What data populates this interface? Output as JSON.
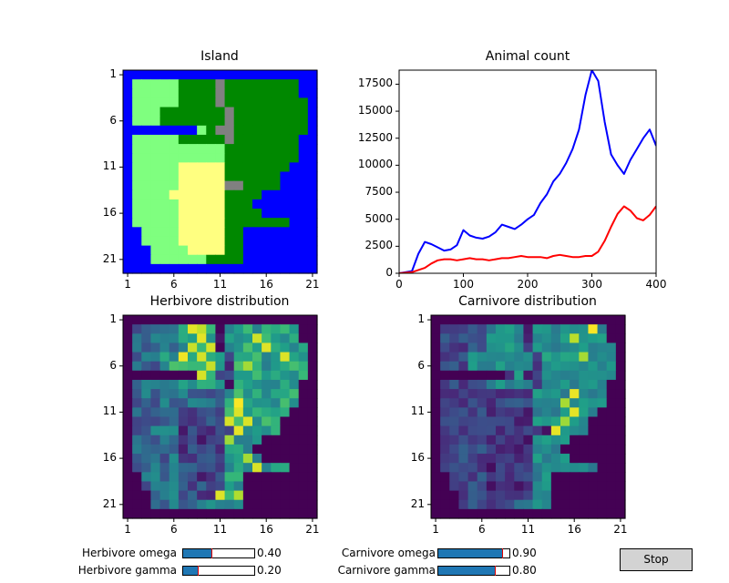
{
  "colors": {
    "axes_frame": "#000000",
    "herbivore_line": "#0000ff",
    "carnivore_line": "#ff0000",
    "slider_fill": "#1f77b4",
    "slider_marker": "#e00000",
    "button_bg": "#d3d3d3",
    "water": "#0000ff",
    "highland": "#008800",
    "lowland": "#7fff7f",
    "desert": "#ffff80",
    "mountain": "#808080"
  },
  "island_panel": {
    "title": "Island",
    "xticks": [
      "1",
      "6",
      "11",
      "16",
      "21"
    ],
    "yticks": [
      "1",
      "6",
      "11",
      "16",
      "21"
    ],
    "map": [
      "WWWWWWWWWWWWWWWWWWWWW",
      "WLLLLLHHHHMHHHHHHHHWW",
      "WLLLLLHHHHMHHHHHHHHWW",
      "WLLLLLHHHHMHHHHHHHHHW",
      "WLLLHHHHHHHMHHHHHHHHW",
      "WLLLHHHHHHHMHHHHHHHHW",
      "WWWWWWWWLHMMHHHHHHHHW",
      "WLLLLLHHHHHMHHHHHHHWW",
      "WLLLLLLLLLLHHHHHHHHWW",
      "WLLLLLLLLLLHHHHHHHHWW",
      "WLLLLLDDDDDHHHHHHHWWW",
      "WLLLLLDDDDDHHHHHHWWWW",
      "WLLLLLDDDDDMMHHHHWWWW",
      "WLLLLDDDDDDHHHHWWWWWW",
      "WLLLLLDDDDDHHHWWWWWWW",
      "WLLLLLDDDDDHHHHWWWWWW",
      "WLLLLLDDDDDHHHHHHHWWW",
      "WWLLLLDDDDDHHWWWWWWWW",
      "WWLLLLDDDDDHHWWWWWWWW",
      "WWWLLLLDDDDHHWWWWWWWW",
      "WWWLLLLLLHHHHWWWWWWWW",
      "WWWWWWWWWWWWWWWWWWWWW"
    ]
  },
  "animal_count_panel": {
    "title": "Animal count",
    "chart_data": {
      "type": "line",
      "title": "Animal count",
      "xlabel": "",
      "ylabel": "",
      "xlim": [
        0,
        400
      ],
      "ylim": [
        0,
        18800
      ],
      "xticks": [
        "0",
        "100",
        "200",
        "300",
        "400"
      ],
      "yticks": [
        "0",
        "2500",
        "5000",
        "7500",
        "10000",
        "12500",
        "15000",
        "17500"
      ],
      "x": [
        0,
        20,
        30,
        40,
        50,
        60,
        70,
        80,
        90,
        100,
        110,
        120,
        130,
        140,
        150,
        160,
        170,
        180,
        190,
        200,
        210,
        220,
        230,
        240,
        250,
        260,
        270,
        280,
        290,
        300,
        310,
        320,
        330,
        340,
        350,
        360,
        370,
        380,
        390,
        400
      ],
      "series": [
        {
          "values": [
            0,
            200,
            1800,
            2900,
            2700,
            2400,
            2100,
            2200,
            2600,
            4000,
            3500,
            3300,
            3200,
            3400,
            3800,
            4500,
            4300,
            4100,
            4500,
            5000,
            5400,
            6500,
            7300,
            8500,
            9200,
            10200,
            11500,
            13300,
            16500,
            18800,
            17800,
            14000,
            11000,
            10000,
            9200,
            10500,
            11500,
            12500,
            13300,
            11800
          ]
        },
        {
          "values": [
            0,
            100,
            300,
            500,
            900,
            1200,
            1300,
            1300,
            1200,
            1300,
            1400,
            1300,
            1300,
            1200,
            1300,
            1400,
            1400,
            1500,
            1600,
            1500,
            1500,
            1500,
            1400,
            1600,
            1700,
            1600,
            1500,
            1500,
            1600,
            1600,
            2000,
            3000,
            4300,
            5500,
            6200,
            5800,
            5100,
            4900,
            5400,
            6200
          ]
        }
      ]
    }
  },
  "herbivore_panel": {
    "title": "Herbivore distribution",
    "xticks": [
      "1",
      "6",
      "11",
      "16",
      "21"
    ],
    "yticks": [
      "1",
      "6",
      "11",
      "16",
      "21"
    ],
    "seed": 11,
    "hot_cells": [
      [
        1,
        7
      ],
      [
        1,
        8
      ],
      [
        2,
        8
      ],
      [
        3,
        7
      ],
      [
        3,
        9
      ],
      [
        4,
        6
      ],
      [
        4,
        8
      ],
      [
        5,
        9
      ],
      [
        6,
        8
      ],
      [
        2,
        14
      ],
      [
        3,
        15
      ],
      [
        4,
        17
      ],
      [
        5,
        13
      ],
      [
        10,
        12
      ],
      [
        11,
        11
      ],
      [
        12,
        12
      ],
      [
        13,
        11
      ],
      [
        15,
        13
      ],
      [
        16,
        14
      ],
      [
        17,
        13
      ],
      [
        18,
        15
      ],
      [
        19,
        10
      ],
      [
        19,
        12
      ],
      [
        19,
        14
      ],
      [
        11,
        13
      ],
      [
        9,
        12
      ]
    ]
  },
  "carnivore_panel": {
    "title": "Carnivore distribution",
    "xticks": [
      "1",
      "6",
      "11",
      "16",
      "21"
    ],
    "yticks": [
      "1",
      "6",
      "11",
      "16",
      "21"
    ],
    "seed": 23,
    "hot_cells": [
      [
        1,
        17
      ],
      [
        2,
        15
      ],
      [
        4,
        16
      ],
      [
        8,
        15
      ],
      [
        9,
        14
      ],
      [
        10,
        15
      ],
      [
        11,
        14
      ],
      [
        12,
        13
      ]
    ]
  },
  "controls": {
    "herbivore_omega": {
      "label": "Herbivore omega",
      "value": 0.4,
      "value_text": "0.40"
    },
    "herbivore_gamma": {
      "label": "Herbivore gamma",
      "value": 0.2,
      "value_text": "0.20"
    },
    "carnivore_omega": {
      "label": "Carnivore omega",
      "value": 0.9,
      "value_text": "0.90"
    },
    "carnivore_gamma": {
      "label": "Carnivore gamma",
      "value": 0.8,
      "value_text": "0.80"
    },
    "stop_label": "Stop"
  }
}
